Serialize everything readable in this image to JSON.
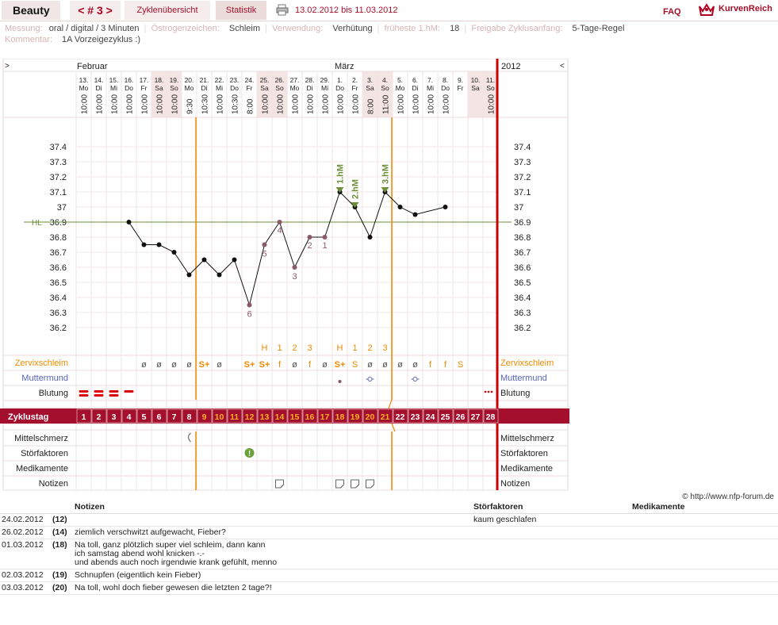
{
  "header": {
    "brand": "Beauty",
    "cycle_nav": "< # 3 >",
    "tab_overview": "Zyklenübersicht",
    "tab_stats": "Statistik",
    "date_range": "13.02.2012 bis 11.03.2012",
    "faq": "FAQ",
    "logo": "KurvenReich"
  },
  "meta": {
    "row1": [
      {
        "label": "Messung:",
        "value": "oral / digital / 3 Minuten"
      },
      {
        "label": "Östrogenzeichen:",
        "value": "Schleim"
      },
      {
        "label": "Verwendung:",
        "value": "Verhütung"
      },
      {
        "label": "früheste 1.hM:",
        "value": "18"
      },
      {
        "label": "Freigabe Zyklusanfang:",
        "value": "5-Tage-Regel"
      }
    ],
    "row2": [
      {
        "label": "Kommentar:",
        "value": "1A Vorzeigezyklus :)"
      }
    ]
  },
  "chart_data": {
    "type": "line",
    "title": "",
    "month_feb": "Februar",
    "month_mar": "März",
    "year": "2012",
    "nav_left": ">",
    "nav_right": "<",
    "hl_label": "HL",
    "hl_value": 36.9,
    "ylim": [
      36.1,
      37.5
    ],
    "yticks": [
      "37.4",
      "37.3",
      "37.2",
      "37.1",
      "37",
      "36.9",
      "36.8",
      "36.7",
      "36.6",
      "36.5",
      "36.4",
      "36.3",
      "36.2"
    ],
    "dates": [
      "13.",
      "14.",
      "15.",
      "16.",
      "17.",
      "18.",
      "19.",
      "20.",
      "21.",
      "22.",
      "23.",
      "24.",
      "25.",
      "26.",
      "27.",
      "28.",
      "29.",
      "1.",
      "2.",
      "3.",
      "4.",
      "5.",
      "6.",
      "7.",
      "8.",
      "9.",
      "10.",
      "11."
    ],
    "weekdays": [
      "Mo",
      "Di",
      "Mi",
      "Do",
      "Fr",
      "Sa",
      "So",
      "Mo",
      "Di",
      "Mi",
      "Do",
      "Fr",
      "Sa",
      "So",
      "Mo",
      "Di",
      "Mi",
      "Do",
      "Fr",
      "Sa",
      "So",
      "Mo",
      "Di",
      "Mi",
      "Do",
      "Fr",
      "Sa",
      "So"
    ],
    "times": [
      "10:00",
      "10:00",
      "10:00",
      "10:00",
      "10:00",
      "10:00",
      "10:00",
      "9:30",
      "10:30",
      "10:00",
      "10:30",
      "8:00",
      "10:00",
      "10:00",
      "10:00",
      "10:00",
      "10:00",
      "10:00",
      "10:00",
      "8:00",
      "11:00",
      "10:00",
      "10:00",
      "10:00",
      "10:00",
      "",
      "",
      "10:00"
    ],
    "cycle_days": [
      "1",
      "2",
      "3",
      "4",
      "5",
      "6",
      "7",
      "8",
      "9",
      "10",
      "11",
      "12",
      "13",
      "14",
      "15",
      "16",
      "17",
      "18",
      "19",
      "20",
      "21",
      "22",
      "23",
      "24",
      "25",
      "26",
      "27",
      "28"
    ],
    "temps": [
      null,
      null,
      null,
      36.9,
      36.75,
      36.75,
      36.7,
      36.55,
      36.65,
      36.55,
      36.65,
      36.35,
      36.75,
      36.9,
      36.6,
      36.8,
      36.8,
      37.1,
      37.0,
      36.8,
      37.1,
      37.0,
      36.95,
      null,
      37.0,
      null,
      null,
      null
    ],
    "point_labels": [
      {
        "day": 12,
        "text": "6"
      },
      {
        "day": 13,
        "text": "5"
      },
      {
        "day": 14,
        "text": "4"
      },
      {
        "day": 15,
        "text": "3"
      },
      {
        "day": 16,
        "text": "2"
      },
      {
        "day": 17,
        "text": "1"
      }
    ],
    "hm_markers": [
      {
        "day": 18,
        "text": "1.hM"
      },
      {
        "day": 19,
        "text": "2.hM"
      },
      {
        "day": 21,
        "text": "3.hM"
      }
    ],
    "peak_labels": [
      {
        "day": 13,
        "text": "H"
      },
      {
        "day": 14,
        "text": "1"
      },
      {
        "day": 15,
        "text": "2"
      },
      {
        "day": 16,
        "text": "3"
      },
      {
        "day": 18,
        "text": "H"
      },
      {
        "day": 19,
        "text": "1"
      },
      {
        "day": 20,
        "text": "2"
      },
      {
        "day": 21,
        "text": "3"
      }
    ],
    "row_labels": {
      "cervix": "Zervixschleim",
      "mumu": "Muttermund",
      "bleeding": "Blutung",
      "cycleday": "Zyklustag",
      "mittel": "Mittelschmerz",
      "stoer": "Störfaktoren",
      "medi": "Medikamente",
      "notes": "Notizen"
    },
    "cervix_symbols": [
      {
        "day": 5,
        "text": "ø"
      },
      {
        "day": 6,
        "text": "ø"
      },
      {
        "day": 7,
        "text": "ø"
      },
      {
        "day": 8,
        "text": "ø"
      },
      {
        "day": 9,
        "text": "S+"
      },
      {
        "day": 10,
        "text": "ø"
      },
      {
        "day": 12,
        "text": "S+"
      },
      {
        "day": 13,
        "text": "S+"
      },
      {
        "day": 14,
        "text": "f"
      },
      {
        "day": 15,
        "text": "ø"
      },
      {
        "day": 16,
        "text": "f"
      },
      {
        "day": 17,
        "text": "ø"
      },
      {
        "day": 18,
        "text": "S+"
      },
      {
        "day": 19,
        "text": "S"
      },
      {
        "day": 20,
        "text": "ø"
      },
      {
        "day": 21,
        "text": "ø"
      },
      {
        "day": 22,
        "text": "ø"
      },
      {
        "day": 23,
        "text": "ø"
      },
      {
        "day": 24,
        "text": "f"
      },
      {
        "day": 25,
        "text": "f"
      },
      {
        "day": 26,
        "text": "S"
      }
    ],
    "colors": {
      "accent": "#a3102a",
      "orange": "#ee8a00",
      "hl_line": "#6e8f3a",
      "marker": "#6e8f3a",
      "pink": "#f4e4e4",
      "mumu": "#5966b9"
    }
  },
  "notes_table": {
    "headers": {
      "notes": "Notizen",
      "stoer": "Störfaktoren",
      "medi": "Medikamente"
    },
    "copyright": "© http://www.nfp-forum.de",
    "rows": [
      {
        "date": "24.02.2012",
        "day": "(12)",
        "note": "",
        "stoer": "kaum geschlafen"
      },
      {
        "date": "26.02.2012",
        "day": "(14)",
        "note": "ziemlich verschwitzt aufgewacht, Fieber?",
        "stoer": ""
      },
      {
        "date": "01.03.2012",
        "day": "(18)",
        "note": "Na toll, ganz plötzlich super viel schleim, dann kann\nich samstag abend wohl knicken -.-\nund abends auch noch irgendwie krank gefühlt, menno",
        "stoer": ""
      },
      {
        "date": "02.03.2012",
        "day": "(19)",
        "note": "Schnupfen (eigentlich kein Fieber)",
        "stoer": ""
      },
      {
        "date": "03.03.2012",
        "day": "(20)",
        "note": "Na toll, wohl doch fieber gewesen die letzten 2 tage?!",
        "stoer": ""
      }
    ]
  }
}
